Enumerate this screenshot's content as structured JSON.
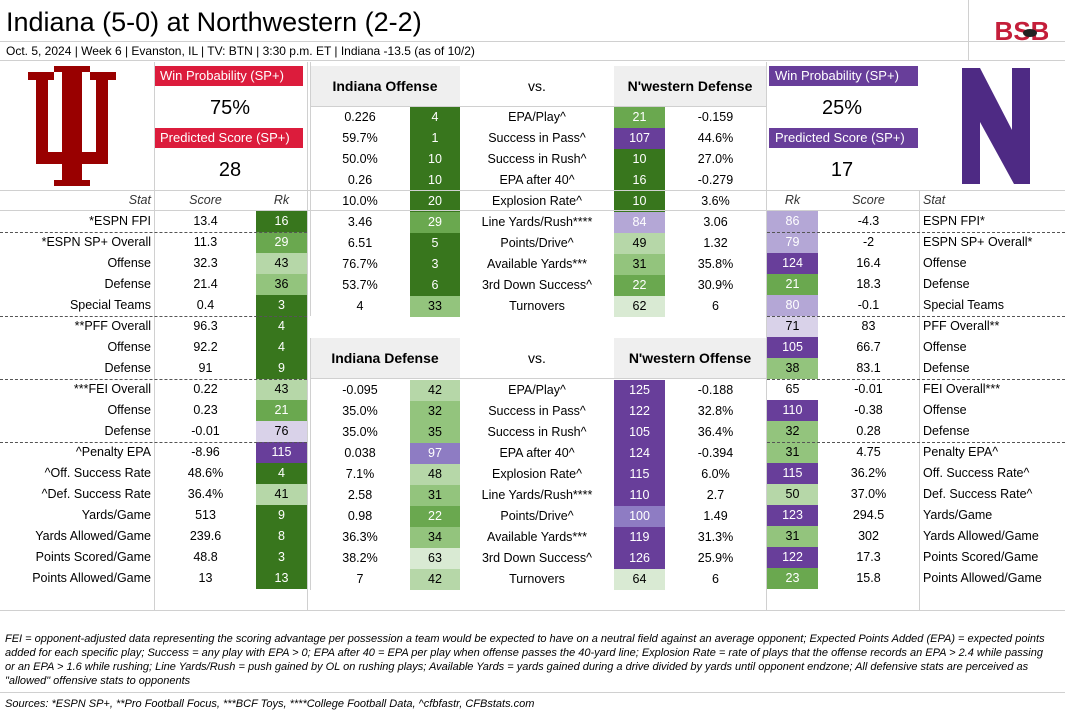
{
  "title": "Indiana (5-0) at Northwestern (2-2)",
  "subtitle": "Oct. 5, 2024 | Week 6 | Evanston, IL | TV: BTN | 3:30 p.m. ET | Indiana -13.5 (as of 10/2)",
  "brand": "BSB",
  "colors": {
    "indiana": "#990000",
    "indiana_badge": "#dc1c3c",
    "nw": "#4e2a84",
    "nw_badge": "#683e9a",
    "grid": "#d0d0d0"
  },
  "home": {
    "logo_text": "IU",
    "wp_label": "Win Probability (SP+)",
    "wp_value": "75%",
    "ps_label": "Predicted Score (SP+)",
    "ps_value": "28"
  },
  "away": {
    "logo_text": "N",
    "wp_label": "Win Probability (SP+)",
    "wp_value": "25%",
    "ps_label": "Predicted Score (SP+)",
    "ps_value": "17"
  },
  "left_headers": {
    "stat": "Stat",
    "score": "Score",
    "rk": "Rk"
  },
  "right_headers": {
    "rk": "Rk",
    "score": "Score",
    "stat": "Stat"
  },
  "left_rows": [
    {
      "stat": "*ESPN FPI",
      "score": "13.4",
      "rk": "16"
    },
    {
      "stat": "*ESPN SP+ Overall",
      "score": "11.3",
      "rk": "29"
    },
    {
      "stat": "Offense",
      "score": "32.3",
      "rk": "43"
    },
    {
      "stat": "Defense",
      "score": "21.4",
      "rk": "36"
    },
    {
      "stat": "Special Teams",
      "score": "0.4",
      "rk": "3"
    },
    {
      "stat": "**PFF Overall",
      "score": "96.3",
      "rk": "4"
    },
    {
      "stat": "Offense",
      "score": "92.2",
      "rk": "4"
    },
    {
      "stat": "Defense",
      "score": "91",
      "rk": "9"
    },
    {
      "stat": "***FEI Overall",
      "score": "0.22",
      "rk": "43"
    },
    {
      "stat": "Offense",
      "score": "0.23",
      "rk": "21"
    },
    {
      "stat": "Defense",
      "score": "-0.01",
      "rk": "76"
    },
    {
      "stat": "^Penalty EPA",
      "score": "-8.96",
      "rk": "115"
    },
    {
      "stat": "^Off. Success Rate",
      "score": "48.6%",
      "rk": "4"
    },
    {
      "stat": "^Def. Success Rate",
      "score": "36.4%",
      "rk": "41"
    },
    {
      "stat": "Yards/Game",
      "score": "513",
      "rk": "9"
    },
    {
      "stat": "Yards Allowed/Game",
      "score": "239.6",
      "rk": "8"
    },
    {
      "stat": "Points Scored/Game",
      "score": "48.8",
      "rk": "3"
    },
    {
      "stat": "Points Allowed/Game",
      "score": "13",
      "rk": "13"
    }
  ],
  "right_rows": [
    {
      "rk": "86",
      "score": "-4.3",
      "stat": "ESPN FPI*"
    },
    {
      "rk": "79",
      "score": "-2",
      "stat": "ESPN SP+ Overall*"
    },
    {
      "rk": "124",
      "score": "16.4",
      "stat": "Offense"
    },
    {
      "rk": "21",
      "score": "18.3",
      "stat": "Defense"
    },
    {
      "rk": "80",
      "score": "-0.1",
      "stat": "Special Teams"
    },
    {
      "rk": "71",
      "score": "83",
      "stat": "PFF Overall**"
    },
    {
      "rk": "105",
      "score": "66.7",
      "stat": "Offense"
    },
    {
      "rk": "38",
      "score": "83.1",
      "stat": "Defense"
    },
    {
      "rk": "65",
      "score": "-0.01",
      "stat": "FEI Overall***"
    },
    {
      "rk": "110",
      "score": "-0.38",
      "stat": "Offense"
    },
    {
      "rk": "32",
      "score": "0.28",
      "stat": "Defense"
    },
    {
      "rk": "31",
      "score": "4.75",
      "stat": "Penalty EPA^"
    },
    {
      "rk": "115",
      "score": "36.2%",
      "stat": "Off. Success Rate^"
    },
    {
      "rk": "50",
      "score": "37.0%",
      "stat": "Def. Success Rate^"
    },
    {
      "rk": "123",
      "score": "294.5",
      "stat": "Yards/Game"
    },
    {
      "rk": "31",
      "score": "302",
      "stat": "Yards Allowed/Game"
    },
    {
      "rk": "122",
      "score": "17.3",
      "stat": "Points Scored/Game"
    },
    {
      "rk": "23",
      "score": "15.8",
      "stat": "Points Allowed/Game"
    }
  ],
  "group1": {
    "left_title": "Indiana Offense",
    "vs": "vs.",
    "right_title": "N'western Defense",
    "rows": [
      {
        "lv": "0.226",
        "lr": "4",
        "stat": "EPA/Play^",
        "rr": "21",
        "rv": "-0.159"
      },
      {
        "lv": "59.7%",
        "lr": "1",
        "stat": "Success in Pass^",
        "rr": "107",
        "rv": "44.6%"
      },
      {
        "lv": "50.0%",
        "lr": "10",
        "stat": "Success in Rush^",
        "rr": "10",
        "rv": "27.0%"
      },
      {
        "lv": "0.26",
        "lr": "10",
        "stat": "EPA after 40^",
        "rr": "16",
        "rv": "-0.279"
      },
      {
        "lv": "10.0%",
        "lr": "20",
        "stat": "Explosion Rate^",
        "rr": "10",
        "rv": "3.6%"
      },
      {
        "lv": "3.46",
        "lr": "29",
        "stat": "Line Yards/Rush****",
        "rr": "84",
        "rv": "3.06"
      },
      {
        "lv": "6.51",
        "lr": "5",
        "stat": "Points/Drive^",
        "rr": "49",
        "rv": "1.32"
      },
      {
        "lv": "76.7%",
        "lr": "3",
        "stat": "Available Yards***",
        "rr": "31",
        "rv": "35.8%"
      },
      {
        "lv": "53.7%",
        "lr": "6",
        "stat": "3rd Down Success^",
        "rr": "22",
        "rv": "30.9%"
      },
      {
        "lv": "4",
        "lr": "33",
        "stat": "Turnovers",
        "rr": "62",
        "rv": "6"
      }
    ]
  },
  "group2": {
    "left_title": "Indiana Defense",
    "vs": "vs.",
    "right_title": "N'western Offense",
    "rows": [
      {
        "lv": "-0.095",
        "lr": "42",
        "stat": "EPA/Play^",
        "rr": "125",
        "rv": "-0.188"
      },
      {
        "lv": "35.0%",
        "lr": "32",
        "stat": "Success in Pass^",
        "rr": "122",
        "rv": "32.8%"
      },
      {
        "lv": "35.0%",
        "lr": "35",
        "stat": "Success in Rush^",
        "rr": "105",
        "rv": "36.4%"
      },
      {
        "lv": "0.038",
        "lr": "97",
        "stat": "EPA after 40^",
        "rr": "124",
        "rv": "-0.394"
      },
      {
        "lv": "7.1%",
        "lr": "48",
        "stat": "Explosion Rate^",
        "rr": "115",
        "rv": "6.0%"
      },
      {
        "lv": "2.58",
        "lr": "31",
        "stat": "Line Yards/Rush****",
        "rr": "110",
        "rv": "2.7"
      },
      {
        "lv": "0.98",
        "lr": "22",
        "stat": "Points/Drive^",
        "rr": "100",
        "rv": "1.49"
      },
      {
        "lv": "36.3%",
        "lr": "34",
        "stat": "Available Yards***",
        "rr": "119",
        "rv": "31.3%"
      },
      {
        "lv": "38.2%",
        "lr": "63",
        "stat": "3rd Down Success^",
        "rr": "126",
        "rv": "25.9%"
      },
      {
        "lv": "7",
        "lr": "42",
        "stat": "Turnovers",
        "rr": "64",
        "rv": "6"
      }
    ]
  },
  "notes": "FEI = opponent-adjusted data representing the scoring advantage per possession a team would be expected to have on a neutral field against an average opponent; Expected Points Added (EPA) = expected points added for each specific play; Success = any play with EPA > 0; EPA after 40 = EPA per play when offense passes the 40-yard line; Explosion Rate = rate of plays that the offense records an EPA > 2.4 while passing or an EPA > 1.6 while rushing; Line Yards/Rush = push gained by OL on rushing plays; Available Yards = yards gained during a drive divided by yards until opponent endzone; All defensive stats are perceived as \"allowed\" offensive stats to opponents",
  "sources": "Sources: *ESPN SP+, **Pro Football Focus, ***BCF Toys, ****College Football Data, ^cfbfastr, CFBstats.com"
}
